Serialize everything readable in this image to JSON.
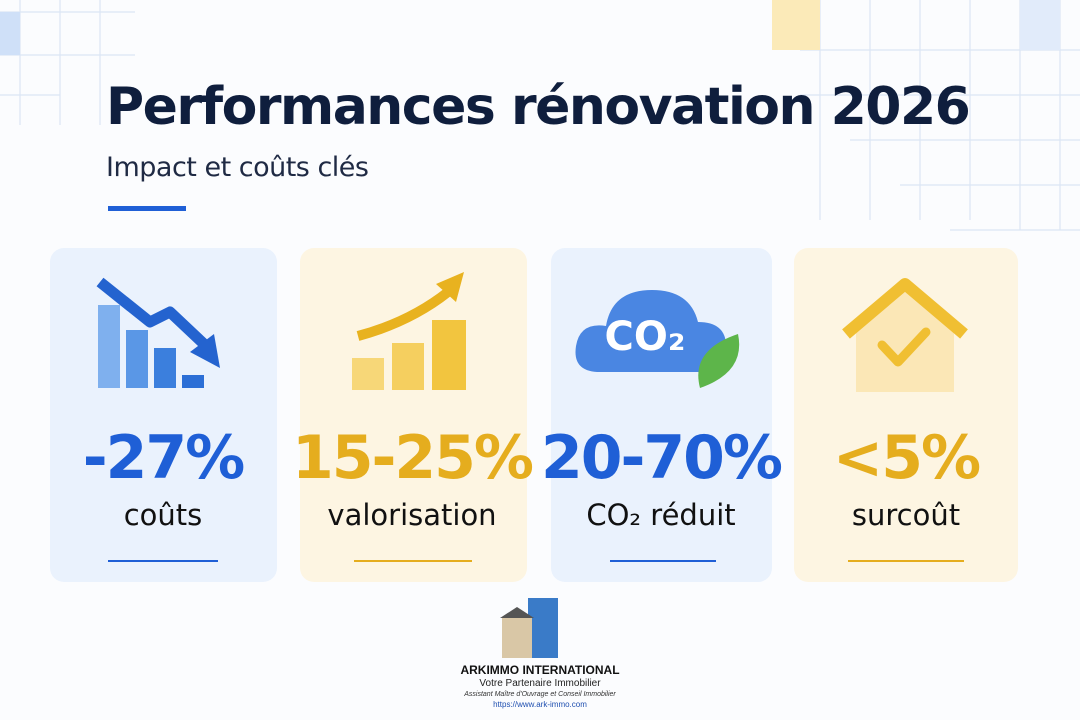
{
  "header": {
    "title": "Performances rénovation 2026",
    "subtitle": "Impact et coûts clés"
  },
  "cards": [
    {
      "value": "-27%",
      "label": "coûts"
    },
    {
      "value": "15-25%",
      "label": "valorisation"
    },
    {
      "value": "20-70%",
      "label": "CO₂ réduit",
      "icon_text": "CO₂"
    },
    {
      "value": "<5%",
      "label": "surcoût"
    }
  ],
  "footer": {
    "company": "ARKIMMO INTERNATIONAL",
    "tagline": "Votre Partenaire Immobilier",
    "description": "Assistant Maître d'Ouvrage et Conseil Immobilier",
    "url": "https://www.ark-immo.com"
  }
}
